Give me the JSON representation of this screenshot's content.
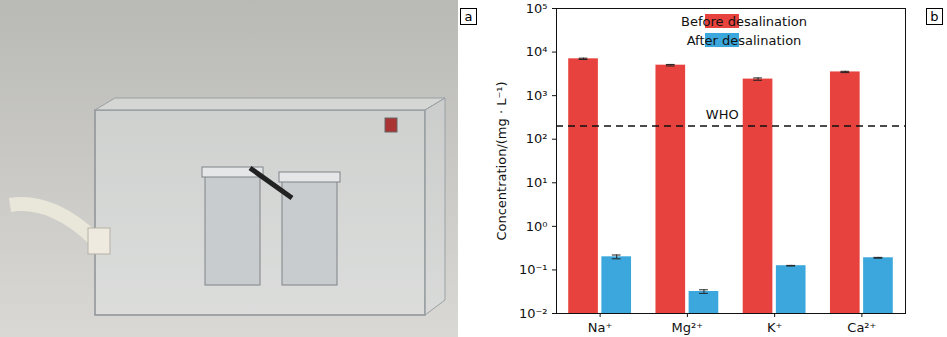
{
  "panel_labels": [
    "a",
    "b"
  ],
  "chart_data": {
    "type": "bar",
    "y_label": "Concentration/(mg · L⁻¹)",
    "categories": [
      "Na⁺",
      "Mg²⁺",
      "K⁺",
      "Ca²⁺"
    ],
    "series": [
      {
        "name": "Before desalination",
        "color": "#e8423f",
        "values": [
          7000,
          5000,
          2400,
          3500
        ],
        "errors": [
          250,
          200,
          150,
          120
        ]
      },
      {
        "name": "After desalination",
        "color": "#3ba7dc",
        "values": [
          0.2,
          0.032,
          0.125,
          0.19
        ],
        "errors": [
          0.02,
          0.003,
          0.002,
          0.004
        ]
      }
    ],
    "log": "y",
    "ylim": [
      0.01,
      100000
    ],
    "yticks": [
      {
        "value": 0.01,
        "label": "10⁻²"
      },
      {
        "value": 0.1,
        "label": "10⁻¹"
      },
      {
        "value": 1,
        "label": "10⁰"
      },
      {
        "value": 10,
        "label": "10¹"
      },
      {
        "value": 100,
        "label": "10²"
      },
      {
        "value": 1000,
        "label": "10³"
      },
      {
        "value": 10000,
        "label": "10⁴"
      },
      {
        "value": 100000,
        "label": "10⁵"
      }
    ],
    "grid": false,
    "legend": "top-right",
    "reference_line": {
      "value": 200,
      "label": "WHO",
      "line_style": "dashed"
    }
  }
}
